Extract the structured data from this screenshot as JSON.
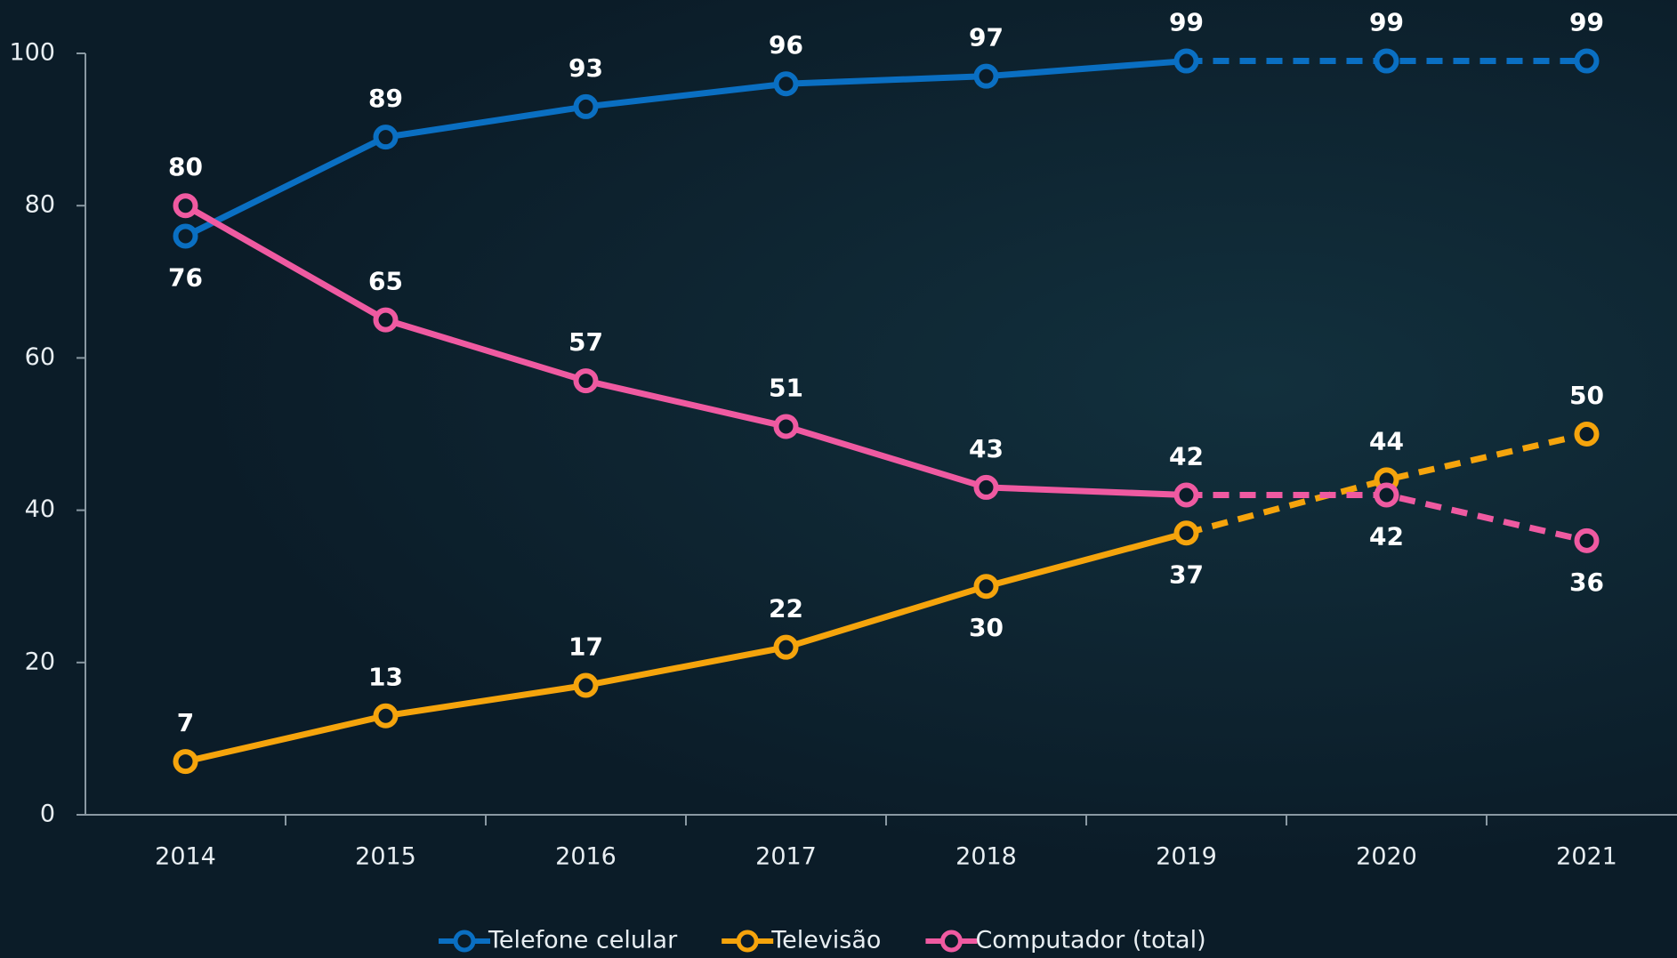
{
  "chart_data": {
    "type": "line",
    "categories": [
      "2014",
      "2015",
      "2016",
      "2017",
      "2018",
      "2019",
      "2020",
      "2021"
    ],
    "series": [
      {
        "name": "Telefone celular",
        "color": "#0a6fc2",
        "values": [
          76,
          89,
          93,
          96,
          97,
          99,
          99,
          99
        ]
      },
      {
        "name": "Televisão",
        "color": "#f5a40c",
        "values": [
          7,
          13,
          17,
          22,
          30,
          37,
          44,
          50
        ]
      },
      {
        "name": "Computador (total)",
        "color": "#ef5aa1",
        "values": [
          80,
          65,
          57,
          51,
          43,
          42,
          42,
          36
        ]
      }
    ],
    "dashed_from": "2019",
    "ylim": [
      0,
      100
    ],
    "yticks": [
      0,
      20,
      40,
      60,
      80,
      100
    ],
    "grid": false,
    "legend": "bottom"
  }
}
